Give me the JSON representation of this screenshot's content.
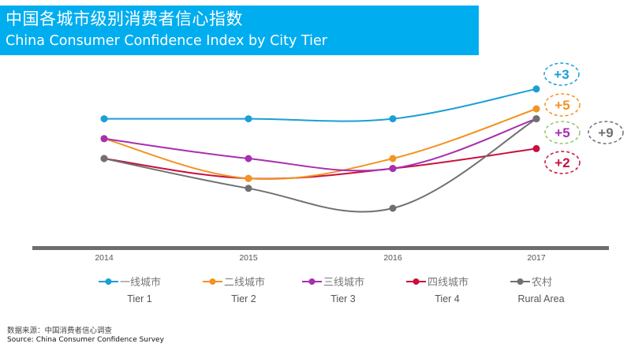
{
  "header": {
    "title_zh": "中国各城市级别消费者信心指数",
    "title_en": "China Consumer Confidence Index by City Tier",
    "bar_color": "#00adef"
  },
  "source": {
    "zh": "数据来源：中国消费者信心调查",
    "en": "Source: China Consumer Confidence Survey"
  },
  "chart_data": {
    "type": "line",
    "title": "China Consumer Confidence Index by City Tier",
    "xlabel": "",
    "ylabel": "",
    "y_axis_shown": false,
    "y_units": "relative index points (no y-axis printed; values estimated relative to lowest point)",
    "grid": false,
    "legend_position": "bottom",
    "x": [
      "2014",
      "2015",
      "2016",
      "2017"
    ],
    "ylim": [
      0,
      13
    ],
    "series": [
      {
        "name": "Tier 1",
        "name_zh": "一线城市",
        "color": "#1a9fd6",
        "values": [
          9,
          9,
          9,
          12
        ],
        "annotation": "+3",
        "annotation_border": "#1a9fd6"
      },
      {
        "name": "Tier 2",
        "name_zh": "二线城市",
        "color": "#f39321",
        "values": [
          7,
          3,
          5,
          10
        ],
        "annotation": "+5",
        "annotation_border": "#f39321"
      },
      {
        "name": "Tier 3",
        "name_zh": "三线城市",
        "color": "#a72fb0",
        "values": [
          7,
          5,
          4,
          9
        ],
        "annotation": "+5",
        "annotation_border": "#8dc96a"
      },
      {
        "name": "Tier 4",
        "name_zh": "四线城市",
        "color": "#c8103e",
        "values": [
          5,
          3,
          4,
          6
        ],
        "annotation": "+2",
        "annotation_border": "#c8103e"
      },
      {
        "name": "Rural Area",
        "name_zh": "农村",
        "color": "#707070",
        "values": [
          5,
          2,
          0,
          9
        ],
        "annotation": "+9",
        "annotation_border": "#707070"
      }
    ],
    "annotations_meaning": "change from 2016 to 2017"
  }
}
